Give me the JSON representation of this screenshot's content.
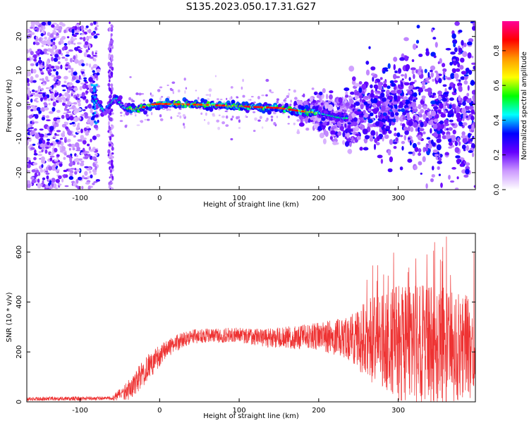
{
  "title": "S135.2023.050.17.31.G27",
  "chart_data": [
    {
      "type": "heatmap",
      "xlabel": "Height of straight line (km)",
      "ylabel": "Frequency (Hz)",
      "xlim": [
        -167,
        397
      ],
      "ylim": [
        -25,
        24.5
      ],
      "xticks": [
        -100,
        0,
        100,
        200,
        300
      ],
      "yticks": [
        -20,
        -10,
        0,
        10,
        20
      ],
      "colorbar": {
        "label": "Normalized spectral amplitude",
        "range": [
          0,
          0.97
        ],
        "ticks": [
          0.0,
          0.2,
          0.4,
          0.6,
          0.8
        ],
        "colors": [
          "#ffffff",
          "#cc99ff",
          "#6600ff",
          "#0000ff",
          "#00ffff",
          "#00ff00",
          "#ffff00",
          "#ff9900",
          "#ff0000",
          "#ff0099"
        ]
      },
      "ridge": [
        {
          "x": -82,
          "f": 2
        },
        {
          "x": -70,
          "f": -2
        },
        {
          "x": -55,
          "f": 2
        },
        {
          "x": -45,
          "f": -1
        },
        {
          "x": -30,
          "f": -1.5
        },
        {
          "x": -10,
          "f": 0
        },
        {
          "x": 0,
          "f": 0.2
        },
        {
          "x": 50,
          "f": 0
        },
        {
          "x": 100,
          "f": -0.5
        },
        {
          "x": 150,
          "f": -1
        },
        {
          "x": 180,
          "f": -2
        },
        {
          "x": 200,
          "f": -2.5
        },
        {
          "x": 230,
          "f": -4
        }
      ]
    },
    {
      "type": "line",
      "xlabel": "Height of straight line (km)",
      "ylabel": "SNR (10 * v/v)",
      "xlim": [
        -167,
        397
      ],
      "ylim": [
        0,
        675
      ],
      "xticks": [
        -100,
        0,
        100,
        200,
        300
      ],
      "yticks": [
        0,
        200,
        400,
        600
      ],
      "color": "#ee3333",
      "envelope": [
        {
          "x": -167,
          "mean": 12,
          "amp": 8
        },
        {
          "x": -60,
          "mean": 14,
          "amp": 8
        },
        {
          "x": -50,
          "mean": 30,
          "amp": 25
        },
        {
          "x": -35,
          "mean": 55,
          "amp": 45
        },
        {
          "x": -20,
          "mean": 120,
          "amp": 55
        },
        {
          "x": 0,
          "mean": 185,
          "amp": 45
        },
        {
          "x": 20,
          "mean": 235,
          "amp": 35
        },
        {
          "x": 40,
          "mean": 262,
          "amp": 28
        },
        {
          "x": 100,
          "mean": 268,
          "amp": 30
        },
        {
          "x": 140,
          "mean": 255,
          "amp": 40
        },
        {
          "x": 200,
          "mean": 262,
          "amp": 55
        },
        {
          "x": 240,
          "mean": 255,
          "amp": 90
        },
        {
          "x": 260,
          "mean": 250,
          "amp": 160
        },
        {
          "x": 300,
          "mean": 235,
          "amp": 230
        },
        {
          "x": 340,
          "mean": 230,
          "amp": 250
        },
        {
          "x": 397,
          "mean": 220,
          "amp": 200
        }
      ]
    }
  ]
}
